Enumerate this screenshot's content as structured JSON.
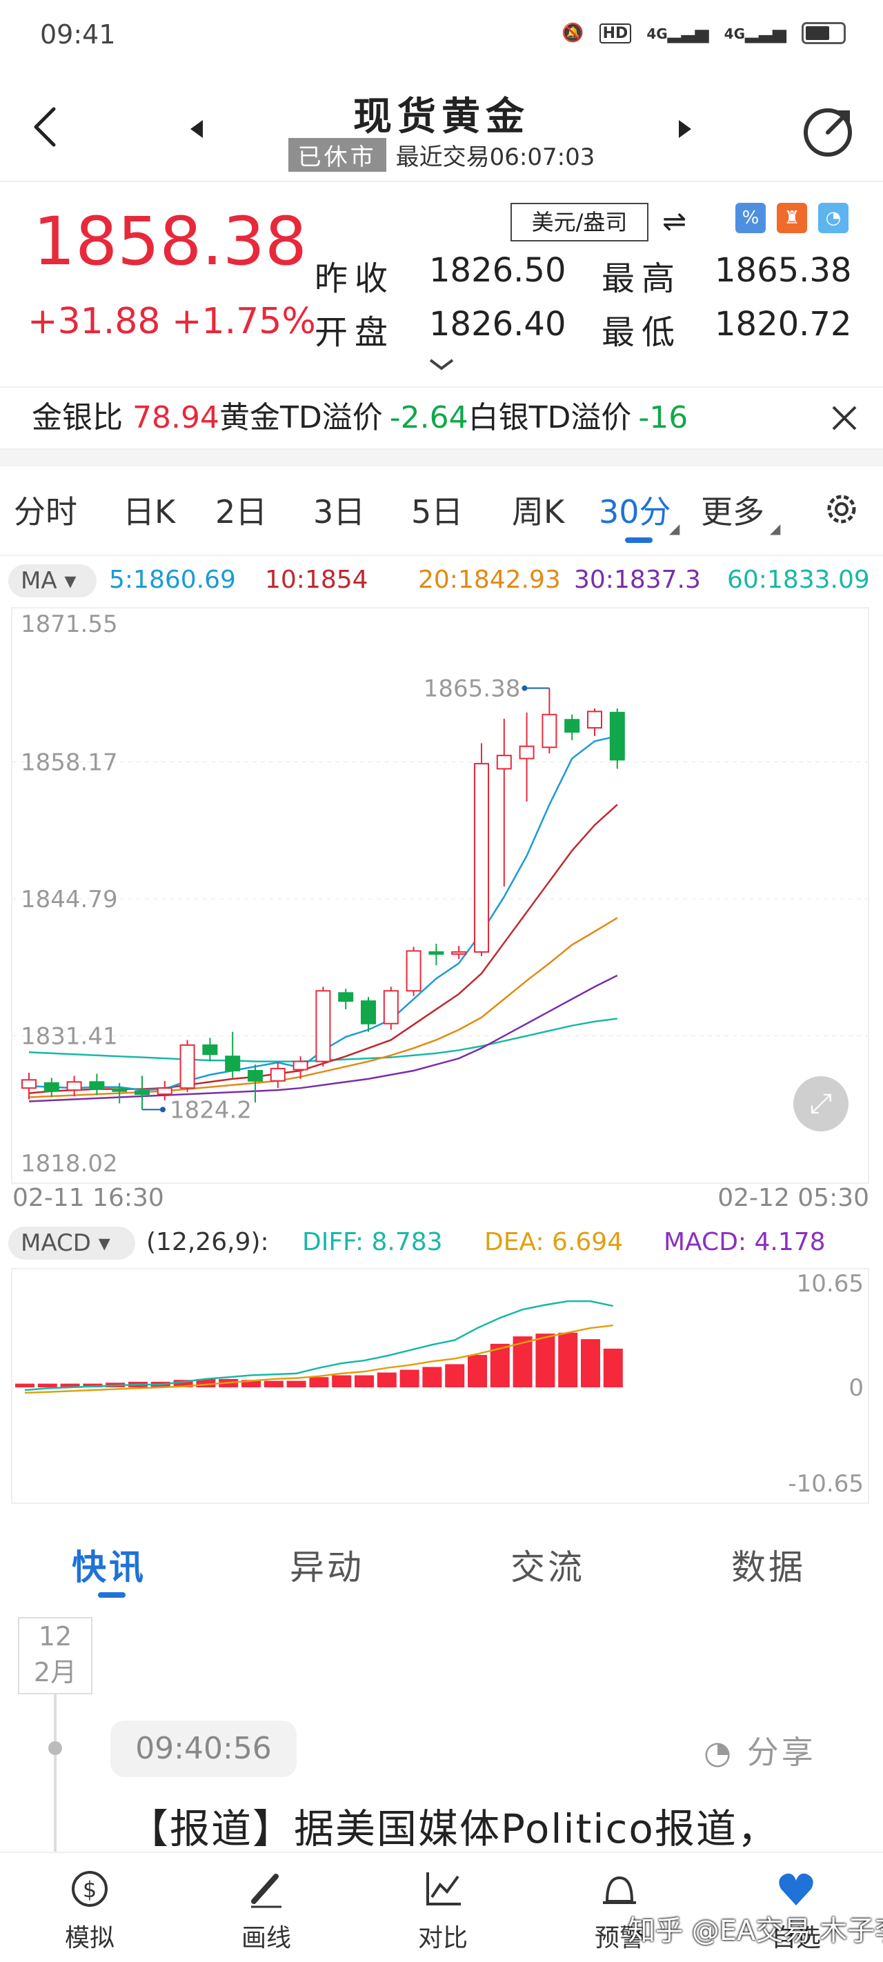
{
  "status": {
    "time": "09:41",
    "network_1": "4G",
    "network_2": "4G",
    "hd": "HD"
  },
  "nav": {
    "title": "现货黄金",
    "market_state": "已休市",
    "last_trade": "最近交易06:07:03"
  },
  "quote": {
    "price": "1858.38",
    "change": "+31.88",
    "change_pct": "+1.75%",
    "unit": "美元/盎司",
    "prev_close_label": "昨收",
    "prev_close": "1826.50",
    "open_label": "开盘",
    "open": "1826.40",
    "high_label": "最高",
    "high": "1865.38",
    "low_label": "最低",
    "low": "1820.72"
  },
  "ratio_bar": {
    "gold_silver_label": "金银比",
    "gold_silver_value": "78.94",
    "gold_td_label": "黄金TD溢价",
    "gold_td_value": "-2.64",
    "silver_td_label": "白银TD溢价",
    "silver_td_value": "-16"
  },
  "period_tabs": [
    "分时",
    "日K",
    "2日",
    "3日",
    "5日",
    "周K",
    "30分",
    "更多"
  ],
  "active_period": "30分",
  "ma_row": {
    "pill": "MA",
    "ma5": "5:1860.69",
    "ma10": "10:1854",
    "ma20": "20:1842.93",
    "ma30": "30:1837.3",
    "ma60": "60:1833.09"
  },
  "macd_row": {
    "pill": "MACD",
    "params": "(12,26,9):",
    "diff": "DIFF: 8.783",
    "dea": "DEA: 6.694",
    "macd": "MACD: 4.178"
  },
  "news_tabs": [
    "快讯",
    "异动",
    "交流",
    "数据"
  ],
  "news": {
    "date_day": "12",
    "date_month": "2月",
    "time": "09:40:56",
    "share": "分享",
    "headline": "【报道】据美国媒体Politico报道，"
  },
  "bottom_nav": [
    "模拟",
    "画线",
    "对比",
    "预警",
    "自选"
  ],
  "watermark": "知乎 @EA交易 木子李",
  "colors": {
    "up": "#e8283b",
    "down": "#10a84a",
    "accent": "#1e72d8",
    "ma5": "#1a9bd7",
    "ma10": "#c0282e",
    "ma20": "#e28a12",
    "ma30": "#7a2ea8",
    "ma60": "#17b8a6"
  },
  "chart_data": [
    {
      "type": "candlestick",
      "ylim": [
        1818.02,
        1871.55
      ],
      "y_ticks": [
        "1871.55",
        "1858.17",
        "1844.79",
        "1831.41",
        "1818.02"
      ],
      "x_start": "02-11 16:30",
      "x_end": "02-12 05:30",
      "max_label": "1865.38",
      "min_label": "1824.2",
      "candles": [
        {
          "o": 1826.3,
          "c": 1827.1,
          "h": 1827.8,
          "l": 1825.2
        },
        {
          "o": 1826.8,
          "c": 1826.0,
          "h": 1827.3,
          "l": 1825.4
        },
        {
          "o": 1826.1,
          "c": 1826.9,
          "h": 1827.5,
          "l": 1825.5
        },
        {
          "o": 1826.9,
          "c": 1826.2,
          "h": 1827.7,
          "l": 1825.6
        },
        {
          "o": 1826.2,
          "c": 1826.0,
          "h": 1826.8,
          "l": 1824.8
        },
        {
          "o": 1826.0,
          "c": 1825.7,
          "h": 1827.5,
          "l": 1824.2
        },
        {
          "o": 1825.7,
          "c": 1826.3,
          "h": 1827.0,
          "l": 1825.1
        },
        {
          "o": 1826.3,
          "c": 1830.5,
          "h": 1831.0,
          "l": 1825.9
        },
        {
          "o": 1830.5,
          "c": 1829.6,
          "h": 1831.2,
          "l": 1828.9
        },
        {
          "o": 1829.4,
          "c": 1828.0,
          "h": 1831.8,
          "l": 1827.3
        },
        {
          "o": 1828.0,
          "c": 1827.0,
          "h": 1828.6,
          "l": 1824.9
        },
        {
          "o": 1827.0,
          "c": 1828.2,
          "h": 1828.8,
          "l": 1826.3
        },
        {
          "o": 1828.1,
          "c": 1828.9,
          "h": 1829.4,
          "l": 1827.2
        },
        {
          "o": 1828.9,
          "c": 1835.8,
          "h": 1836.2,
          "l": 1828.4
        },
        {
          "o": 1835.6,
          "c": 1834.8,
          "h": 1836.0,
          "l": 1834.0
        },
        {
          "o": 1834.8,
          "c": 1832.6,
          "h": 1835.2,
          "l": 1831.8
        },
        {
          "o": 1832.6,
          "c": 1835.8,
          "h": 1836.2,
          "l": 1832.0
        },
        {
          "o": 1835.8,
          "c": 1839.7,
          "h": 1840.1,
          "l": 1835.3
        },
        {
          "o": 1839.6,
          "c": 1839.5,
          "h": 1840.4,
          "l": 1838.3
        },
        {
          "o": 1839.5,
          "c": 1839.6,
          "h": 1840.2,
          "l": 1838.9
        },
        {
          "o": 1839.6,
          "c": 1858.0,
          "h": 1860.0,
          "l": 1839.2
        },
        {
          "o": 1857.5,
          "c": 1858.8,
          "h": 1862.4,
          "l": 1846.0
        },
        {
          "o": 1858.5,
          "c": 1859.7,
          "h": 1863.0,
          "l": 1854.3
        },
        {
          "o": 1859.6,
          "c": 1862.8,
          "h": 1865.38,
          "l": 1859.0
        },
        {
          "o": 1862.3,
          "c": 1861.1,
          "h": 1862.8,
          "l": 1860.3
        },
        {
          "o": 1861.5,
          "c": 1863.1,
          "h": 1863.4,
          "l": 1860.7
        },
        {
          "o": 1863.0,
          "c": 1858.38,
          "h": 1863.4,
          "l": 1857.5
        }
      ],
      "ma_series": [
        {
          "name": "5",
          "values": [
            1826.5,
            1826.4,
            1826.3,
            1826.4,
            1826.4,
            1826.1,
            1826.2,
            1827.0,
            1827.6,
            1828.0,
            1828.4,
            1828.8,
            1828.3,
            1830.0,
            1831.3,
            1832.0,
            1833.0,
            1835.0,
            1837.0,
            1838.5,
            1841.5,
            1845.0,
            1849.0,
            1854.0,
            1858.5,
            1860.2,
            1860.69
          ]
        },
        {
          "name": "10",
          "values": [
            1825.8,
            1826.0,
            1826.1,
            1826.2,
            1826.2,
            1826.2,
            1826.3,
            1826.6,
            1826.9,
            1827.2,
            1827.4,
            1827.7,
            1828.0,
            1828.7,
            1829.4,
            1830.2,
            1831.0,
            1832.5,
            1834.0,
            1835.5,
            1837.5,
            1840.5,
            1843.5,
            1846.5,
            1849.5,
            1852.0,
            1854.0
          ]
        },
        {
          "name": "20",
          "values": [
            1825.4,
            1825.5,
            1825.6,
            1825.7,
            1825.8,
            1825.9,
            1826.0,
            1826.2,
            1826.4,
            1826.6,
            1826.8,
            1827.0,
            1827.4,
            1827.9,
            1828.4,
            1828.9,
            1829.5,
            1830.2,
            1831.0,
            1832.0,
            1833.2,
            1835.0,
            1836.8,
            1838.5,
            1840.3,
            1841.6,
            1842.93
          ]
        },
        {
          "name": "30",
          "values": [
            1825.0,
            1825.1,
            1825.2,
            1825.3,
            1825.4,
            1825.5,
            1825.6,
            1825.7,
            1825.8,
            1825.9,
            1826.0,
            1826.1,
            1826.3,
            1826.6,
            1826.9,
            1827.2,
            1827.6,
            1828.0,
            1828.6,
            1829.2,
            1830.2,
            1831.4,
            1832.6,
            1833.8,
            1835.0,
            1836.2,
            1837.3
          ]
        },
        {
          "name": "60",
          "values": [
            1829.8,
            1829.7,
            1829.6,
            1829.5,
            1829.4,
            1829.3,
            1829.2,
            1829.1,
            1829.0,
            1829.0,
            1828.9,
            1828.9,
            1828.9,
            1829.0,
            1829.1,
            1829.2,
            1829.3,
            1829.5,
            1829.7,
            1830.0,
            1830.4,
            1830.9,
            1831.4,
            1831.9,
            1832.4,
            1832.8,
            1833.09
          ]
        }
      ]
    },
    {
      "type": "bar",
      "title": "MACD",
      "ylim": [
        -10.65,
        10.65
      ],
      "y_ticks": [
        "10.65",
        "0",
        "-10.65"
      ],
      "histogram": [
        0.4,
        0.4,
        0.4,
        0.4,
        0.5,
        0.6,
        0.6,
        0.8,
        0.9,
        0.9,
        0.8,
        0.7,
        0.7,
        1.1,
        1.3,
        1.3,
        1.6,
        1.9,
        2.2,
        2.5,
        3.5,
        4.7,
        5.5,
        5.8,
        5.9,
        5.2,
        4.178
      ],
      "diff": [
        -0.3,
        -0.1,
        0.0,
        0.1,
        0.2,
        0.3,
        0.3,
        0.6,
        0.9,
        1.1,
        1.3,
        1.4,
        1.5,
        2.1,
        2.6,
        2.9,
        3.4,
        4.0,
        4.6,
        5.1,
        6.4,
        7.5,
        8.4,
        8.9,
        9.3,
        9.3,
        8.783
      ],
      "dea": [
        -0.6,
        -0.5,
        -0.4,
        -0.3,
        -0.2,
        -0.1,
        0.0,
        0.1,
        0.3,
        0.5,
        0.7,
        0.9,
        1.0,
        1.2,
        1.5,
        1.7,
        2.1,
        2.4,
        2.8,
        3.1,
        3.6,
        4.2,
        4.8,
        5.4,
        5.9,
        6.4,
        6.694
      ]
    }
  ]
}
